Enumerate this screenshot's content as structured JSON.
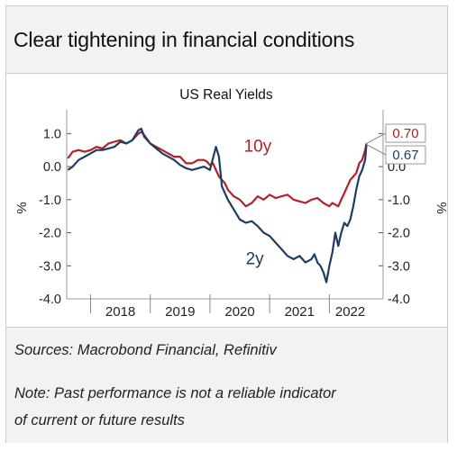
{
  "title": "Clear tightening in financial conditions",
  "sources": "Sources: Macrobond Financial, Refinitiv",
  "note_line1": "Note: Past performance is not a reliable indicator",
  "note_line2": "of current or future results",
  "chart_data": {
    "type": "line",
    "title": "US Real Yields",
    "ylabel_left": "%",
    "ylabel_right": "%",
    "ylim": [
      -4.0,
      1.5
    ],
    "yticks": [
      1.0,
      0.0,
      -1.0,
      -2.0,
      -3.0,
      -4.0
    ],
    "ytick_labels": [
      "1.0",
      "0.0",
      "-1.0",
      "-2.0",
      "-3.0",
      "-4.0"
    ],
    "xlim": [
      2017.6,
      2022.9
    ],
    "x_labels": [
      {
        "label": "2018",
        "x": 2018.5
      },
      {
        "label": "2019",
        "x": 2019.5
      },
      {
        "label": "2020",
        "x": 2020.5
      },
      {
        "label": "2021",
        "x": 2021.5
      },
      {
        "label": "2022",
        "x": 2022.35
      }
    ],
    "x_dividers": [
      2018.0,
      2019.0,
      2020.0,
      2021.0,
      2022.0
    ],
    "series": [
      {
        "name": "10y",
        "color": "#b22028",
        "end_label": "0.70",
        "x": [
          2017.62,
          2017.7,
          2017.8,
          2017.9,
          2018.0,
          2018.1,
          2018.2,
          2018.3,
          2018.4,
          2018.5,
          2018.6,
          2018.7,
          2018.8,
          2018.85,
          2018.9,
          2019.0,
          2019.1,
          2019.2,
          2019.3,
          2019.4,
          2019.5,
          2019.6,
          2019.7,
          2019.8,
          2019.9,
          2019.95,
          2020.0,
          2020.05,
          2020.1,
          2020.15,
          2020.2,
          2020.25,
          2020.3,
          2020.4,
          2020.5,
          2020.6,
          2020.7,
          2020.8,
          2020.9,
          2021.0,
          2021.1,
          2021.2,
          2021.3,
          2021.4,
          2021.5,
          2021.6,
          2021.7,
          2021.8,
          2021.9,
          2022.0,
          2022.05,
          2022.1,
          2022.15,
          2022.2,
          2022.25,
          2022.3,
          2022.35,
          2022.4,
          2022.45,
          2022.5,
          2022.55,
          2022.6,
          2022.62
        ],
        "y": [
          0.25,
          0.45,
          0.5,
          0.45,
          0.5,
          0.6,
          0.55,
          0.7,
          0.75,
          0.8,
          0.7,
          0.8,
          1.0,
          1.05,
          0.95,
          0.7,
          0.6,
          0.5,
          0.4,
          0.3,
          0.3,
          0.1,
          0.1,
          0.2,
          0.2,
          0.15,
          0.05,
          0.1,
          -0.1,
          -0.3,
          -0.4,
          -0.5,
          -0.7,
          -0.9,
          -1.0,
          -1.2,
          -1.1,
          -0.9,
          -1.0,
          -0.85,
          -0.95,
          -0.9,
          -0.85,
          -1.0,
          -1.05,
          -1.1,
          -1.0,
          -0.95,
          -1.1,
          -1.2,
          -1.1,
          -1.15,
          -1.2,
          -1.0,
          -0.8,
          -0.6,
          -0.4,
          -0.3,
          -0.2,
          0.1,
          0.2,
          0.5,
          0.7
        ]
      },
      {
        "name": "2y",
        "color": "#1f3d63",
        "end_label": "0.67",
        "x": [
          2017.62,
          2017.7,
          2017.8,
          2017.9,
          2018.0,
          2018.1,
          2018.2,
          2018.3,
          2018.4,
          2018.5,
          2018.6,
          2018.7,
          2018.8,
          2018.85,
          2018.9,
          2019.0,
          2019.1,
          2019.2,
          2019.3,
          2019.4,
          2019.5,
          2019.6,
          2019.7,
          2019.8,
          2019.9,
          2020.0,
          2020.1,
          2020.15,
          2020.2,
          2020.25,
          2020.3,
          2020.4,
          2020.5,
          2020.6,
          2020.7,
          2020.8,
          2020.9,
          2021.0,
          2021.1,
          2021.2,
          2021.3,
          2021.4,
          2021.5,
          2021.6,
          2021.7,
          2021.75,
          2021.8,
          2021.85,
          2021.9,
          2021.95,
          2022.0,
          2022.05,
          2022.1,
          2022.15,
          2022.2,
          2022.25,
          2022.3,
          2022.35,
          2022.4,
          2022.45,
          2022.5,
          2022.55,
          2022.6,
          2022.62
        ],
        "y": [
          -0.1,
          0.0,
          0.2,
          0.3,
          0.4,
          0.5,
          0.5,
          0.55,
          0.6,
          0.75,
          0.7,
          0.8,
          1.1,
          1.15,
          0.9,
          0.7,
          0.55,
          0.4,
          0.3,
          0.2,
          0.05,
          -0.05,
          -0.1,
          -0.05,
          0.0,
          -0.1,
          0.6,
          0.3,
          -0.6,
          -0.8,
          -1.0,
          -1.3,
          -1.6,
          -1.7,
          -1.65,
          -1.8,
          -2.0,
          -2.1,
          -2.3,
          -2.5,
          -2.7,
          -2.8,
          -2.7,
          -2.9,
          -2.8,
          -2.65,
          -2.9,
          -3.0,
          -3.2,
          -3.5,
          -3.0,
          -2.6,
          -2.0,
          -2.4,
          -2.0,
          -1.7,
          -1.8,
          -1.6,
          -1.2,
          -0.7,
          -0.3,
          -0.1,
          0.2,
          0.67
        ]
      }
    ],
    "series_labels": [
      {
        "text": "10y",
        "x": 2020.8,
        "y": 0.45
      },
      {
        "text": "2y",
        "x": 2020.75,
        "y": -2.95
      }
    ]
  }
}
